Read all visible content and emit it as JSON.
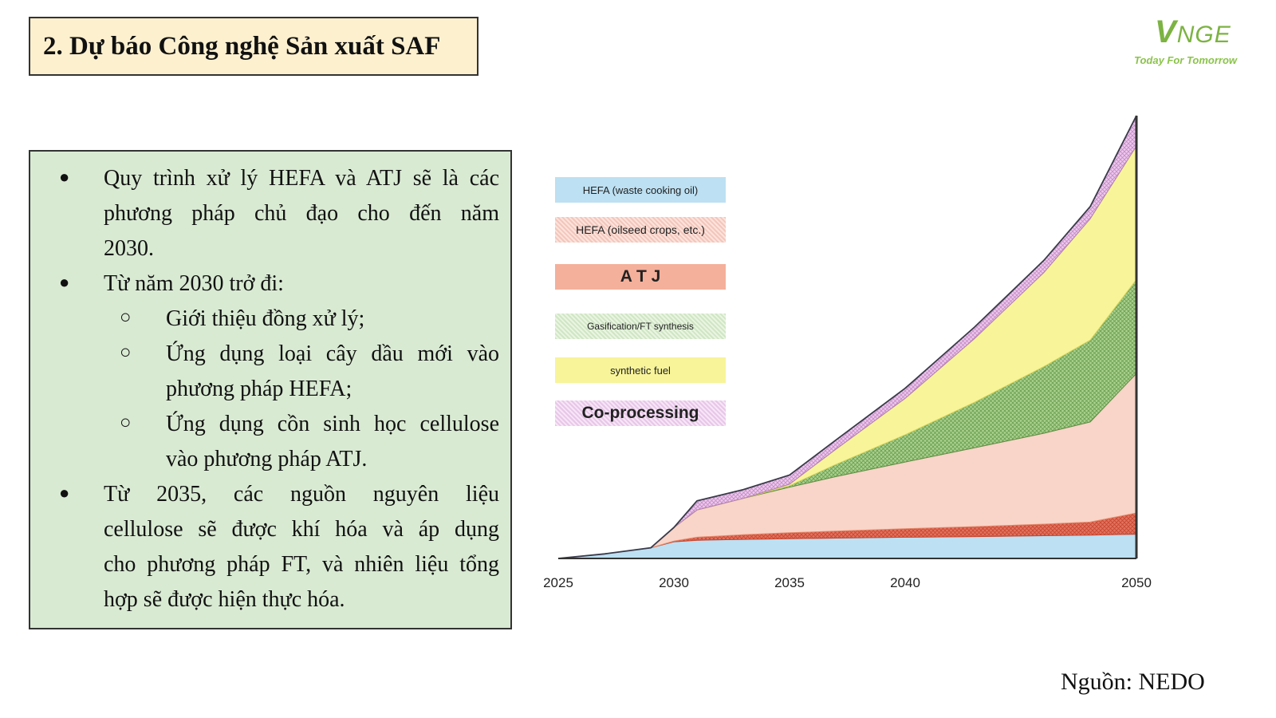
{
  "header": {
    "title": "2. Dự báo Công nghệ Sản xuất SAF"
  },
  "logo": {
    "mark_v": "V",
    "mark_rest": "NGE",
    "tagline": "Today For Tomorrow"
  },
  "content": {
    "bullets": [
      {
        "lines": [
          "Quy trình xử lý HEFA và ATJ sẽ là các",
          "phương pháp chủ đạo cho đến năm",
          "2030."
        ]
      },
      {
        "lines": [
          "Từ năm 2030 trở đi:"
        ]
      },
      {
        "lines": [
          "Giới thiệu đồng xử lý;"
        ]
      },
      {
        "lines": [
          "Ứng dụng loại cây dầu mới vào",
          "phương pháp HEFA;"
        ]
      },
      {
        "lines": [
          "Ứng dụng cồn sinh học cellulose",
          "vào phương pháp ATJ."
        ]
      },
      {
        "lines": [
          "Từ 2035, các nguồn nguyên liệu",
          "cellulose sẽ được khí hóa và áp dụng",
          "cho phương pháp FT, và nhiên liệu tổng",
          "hợp sẽ được hiện thực hóa."
        ]
      }
    ],
    "bullet_symbol": "●",
    "sub_bullet_symbol": "○"
  },
  "source": "Nguồn: NEDO",
  "chart_data": {
    "type": "area",
    "stacked": true,
    "x": [
      2025,
      2027,
      2029,
      2030,
      2031,
      2033,
      2035,
      2037,
      2040,
      2043,
      2046,
      2048,
      2050
    ],
    "xticks": [
      "2025",
      "2030",
      "2035",
      "2040",
      "2050"
    ],
    "series": [
      {
        "name": "HEFA (waste cooking oil)",
        "color": "#bde0f2",
        "values": [
          0,
          1.5,
          3.5,
          5.5,
          6,
          6.3,
          6.5,
          6.7,
          7,
          7.2,
          7.5,
          7.7,
          8
        ]
      },
      {
        "name": "HEFA (oilseed crops, etc.)",
        "color": "#e2735f",
        "values": [
          0,
          0,
          0,
          0.2,
          1,
          1.5,
          2,
          2.3,
          2.8,
          3.3,
          3.8,
          4.3,
          7
        ]
      },
      {
        "name": "A T J",
        "color": "#f8d5c8",
        "values": [
          0,
          0,
          0,
          4.5,
          9,
          12,
          15,
          18,
          22,
          26,
          30,
          33,
          46
        ]
      },
      {
        "name": "Gasification/FT synthesis",
        "color": "#a9d18e",
        "values": [
          0,
          0,
          0,
          0,
          0,
          0,
          0.5,
          4,
          9,
          15,
          22,
          27,
          31
        ]
      },
      {
        "name": "synthetic fuel",
        "color": "#f7f49a",
        "values": [
          0,
          0,
          0,
          0,
          0,
          0,
          0.5,
          5,
          12,
          21,
          31,
          40,
          44
        ]
      },
      {
        "name": "Co-processing",
        "color": "#e8b9e8",
        "values": [
          0,
          0,
          0,
          0,
          3,
          2.9,
          3,
          3,
          3.3,
          3.8,
          4,
          4,
          10
        ]
      }
    ],
    "legend_position": "left",
    "grid": false
  },
  "colors": {
    "title_bg": "#fdf0cf",
    "text_box_bg": "#d9ead3",
    "logo_green": "#7cb342"
  }
}
